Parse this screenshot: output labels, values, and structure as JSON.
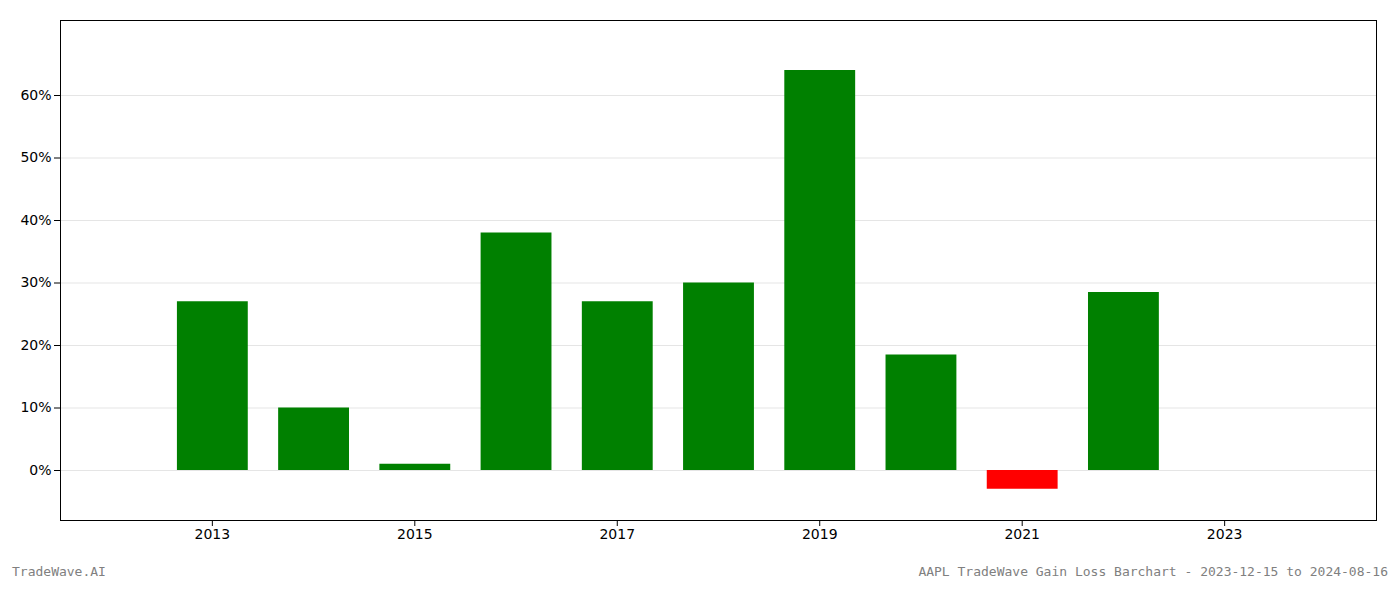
{
  "chart_data": {
    "type": "bar",
    "x": [
      2013,
      2014,
      2015,
      2016,
      2017,
      2018,
      2019,
      2020,
      2021,
      2022
    ],
    "values": [
      0.27,
      0.1,
      0.01,
      0.38,
      0.27,
      0.3,
      0.64,
      0.185,
      -0.03,
      0.285
    ],
    "colors": [
      "#008000",
      "#008000",
      "#008000",
      "#008000",
      "#008000",
      "#008000",
      "#008000",
      "#008000",
      "#ff0000",
      "#008000"
    ],
    "xlim": [
      2011.5,
      2024.5
    ],
    "xticks": [
      2013,
      2015,
      2017,
      2019,
      2021,
      2023
    ],
    "ylim": [
      -0.08,
      0.72
    ],
    "yticks": [
      {
        "value": 0.0,
        "label": "0%"
      },
      {
        "value": 0.1,
        "label": "10%"
      },
      {
        "value": 0.2,
        "label": "20%"
      },
      {
        "value": 0.3,
        "label": "30%"
      },
      {
        "value": 0.4,
        "label": "40%"
      },
      {
        "value": 0.5,
        "label": "50%"
      },
      {
        "value": 0.6,
        "label": "60%"
      }
    ],
    "grid": true,
    "annotations": [
      "TradeWave.AI",
      "AAPL TradeWave Gain Loss Barchart - 2023-12-15 to 2024-08-16"
    ]
  }
}
